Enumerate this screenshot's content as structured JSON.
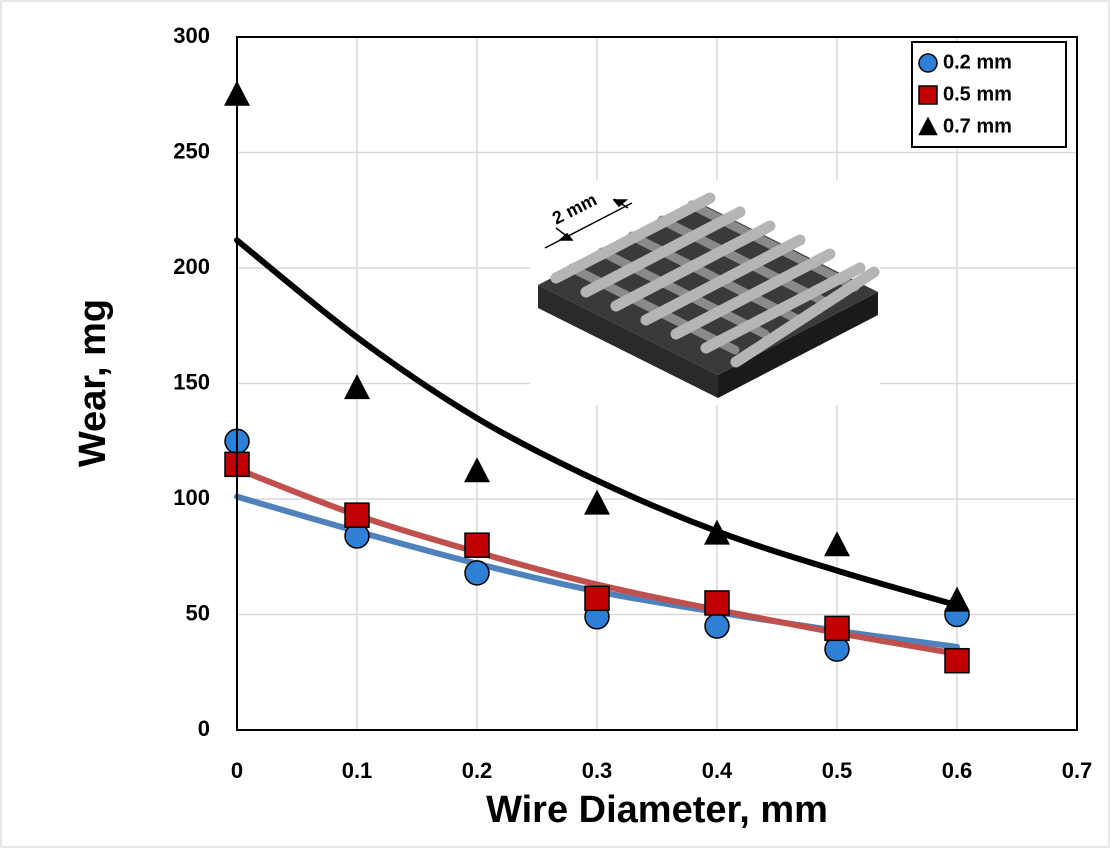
{
  "chart_data": {
    "type": "scatter",
    "xlabel": "Wire Diameter, mm",
    "ylabel": "Wear, mg",
    "annotation": "2 mm",
    "x": [
      0,
      0.1,
      0.2,
      0.3,
      0.4,
      0.5,
      0.6
    ],
    "xlim": [
      0,
      0.7
    ],
    "xticks": [
      0,
      0.1,
      0.2,
      0.3,
      0.4,
      0.5,
      0.6,
      0.7
    ],
    "ylim": [
      0,
      300
    ],
    "yticks": [
      0,
      50,
      100,
      150,
      200,
      250,
      300
    ],
    "grid": true,
    "legend": "upper right",
    "series": [
      {
        "name": "0.2 mm",
        "color": "#2e7fd6",
        "trend_color": "#4f81bd",
        "marker": "circle",
        "values": [
          125,
          84,
          68,
          49,
          45,
          35,
          50
        ],
        "trend": [
          101,
          86,
          72,
          60,
          51,
          43,
          36
        ]
      },
      {
        "name": "0.5 mm",
        "color": "#c00000",
        "trend_color": "#c0504d",
        "marker": "square",
        "values": [
          115,
          93,
          80,
          57,
          55,
          44,
          30
        ],
        "trend": [
          113,
          93,
          77,
          63,
          52,
          42,
          33
        ]
      },
      {
        "name": "0.7 mm",
        "color": "#000000",
        "trend_color": "#000000",
        "marker": "triangle",
        "values": [
          275,
          148,
          112,
          98,
          85,
          80,
          56
        ],
        "trend": [
          212,
          170,
          135,
          108,
          86,
          69,
          54
        ]
      }
    ]
  }
}
